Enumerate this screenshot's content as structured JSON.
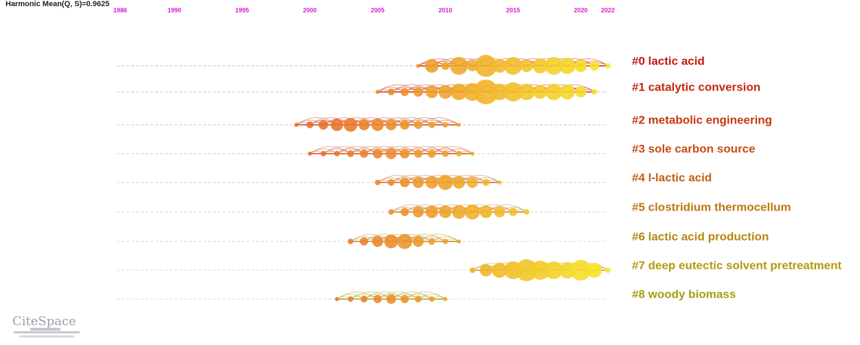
{
  "header": "Harmonic Mean(Q, S)=0.9625",
  "logo": "CiteSpace",
  "chart_data": {
    "type": "timeline",
    "xlim": [
      1986,
      2022
    ],
    "xticks": [
      1986,
      1990,
      1995,
      2000,
      2005,
      2010,
      2015,
      2020,
      2022
    ],
    "series": [
      {
        "name": "#0 lactic acid",
        "color": "#c4180e",
        "x": [
          2008,
          2009,
          2010,
          2011,
          2012,
          2013,
          2014,
          2015,
          2016,
          2017,
          2018,
          2019,
          2020,
          2021,
          2022
        ],
        "sizes": [
          3,
          10,
          6,
          13,
          8,
          16,
          10,
          13,
          9,
          11,
          13,
          12,
          9,
          7,
          4
        ]
      },
      {
        "name": "#1 catalytic conversion",
        "color": "#c6260e",
        "x": [
          2005,
          2006,
          2007,
          2008,
          2009,
          2010,
          2011,
          2012,
          2013,
          2014,
          2015,
          2016,
          2017,
          2018,
          2019,
          2020,
          2021
        ],
        "sizes": [
          3,
          5,
          6,
          7,
          9,
          10,
          12,
          13,
          18,
          12,
          14,
          12,
          10,
          12,
          11,
          8,
          4
        ]
      },
      {
        "name": "#2 metabolic engineering",
        "color": "#c4380e",
        "x": [
          1999,
          2000,
          2001,
          2002,
          2003,
          2004,
          2005,
          2006,
          2007,
          2008,
          2009,
          2010,
          2011
        ],
        "sizes": [
          3,
          5,
          7,
          9,
          10,
          8,
          9,
          8,
          7,
          6,
          5,
          4,
          3
        ]
      },
      {
        "name": "#3 sole carbon source",
        "color": "#c64c10",
        "x": [
          2000,
          2001,
          2002,
          2003,
          2004,
          2005,
          2006,
          2007,
          2008,
          2009,
          2010,
          2011,
          2012
        ],
        "sizes": [
          3,
          4,
          4,
          5,
          6,
          7,
          8,
          7,
          6,
          6,
          5,
          4,
          3
        ]
      },
      {
        "name": "#4 l-lactic acid",
        "color": "#c45e10",
        "x": [
          2005,
          2006,
          2007,
          2008,
          2009,
          2010,
          2011,
          2012,
          2013,
          2014
        ],
        "sizes": [
          4,
          5,
          7,
          8,
          9,
          11,
          9,
          8,
          5,
          3
        ]
      },
      {
        "name": "#5 clostridium thermocellum",
        "color": "#c07614",
        "x": [
          2006,
          2007,
          2008,
          2009,
          2010,
          2011,
          2012,
          2013,
          2014,
          2015,
          2016
        ],
        "sizes": [
          4,
          6,
          8,
          9,
          9,
          10,
          11,
          9,
          8,
          6,
          4
        ]
      },
      {
        "name": "#6 lactic acid production",
        "color": "#b48812",
        "x": [
          2003,
          2004,
          2005,
          2006,
          2007,
          2008,
          2009,
          2010,
          2011
        ],
        "sizes": [
          4,
          6,
          8,
          10,
          11,
          8,
          5,
          4,
          3
        ]
      },
      {
        "name": "#7 deep eutectic solvent pretreatment",
        "color": "#b6980e",
        "x": [
          2012,
          2013,
          2014,
          2015,
          2016,
          2017,
          2018,
          2019,
          2020,
          2021,
          2022
        ],
        "sizes": [
          4,
          9,
          11,
          13,
          16,
          14,
          13,
          12,
          15,
          11,
          4
        ]
      },
      {
        "name": "#8 woody biomass",
        "color": "#a89e12",
        "x": [
          2002,
          2003,
          2004,
          2005,
          2006,
          2007,
          2008,
          2009,
          2010
        ],
        "sizes": [
          3,
          4,
          5,
          6,
          7,
          6,
          5,
          4,
          3
        ]
      }
    ]
  }
}
